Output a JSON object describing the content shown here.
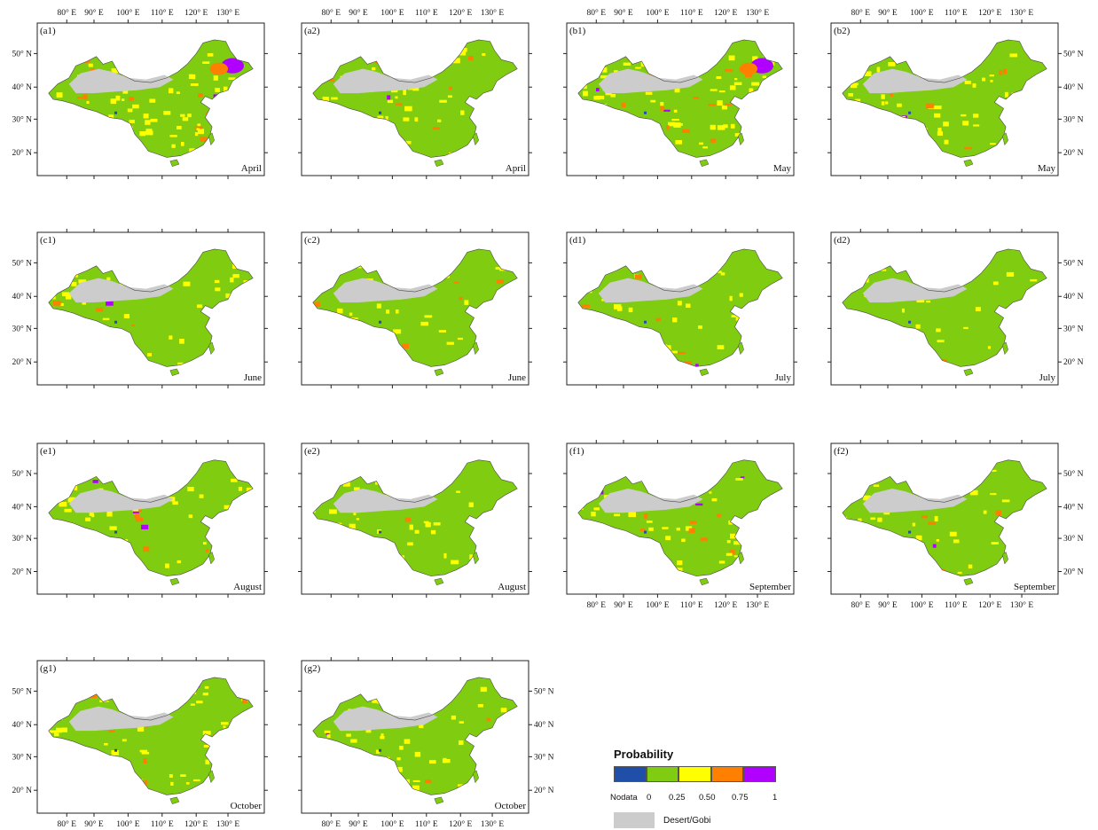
{
  "panels": [
    {
      "id": "(a1)",
      "month": "April"
    },
    {
      "id": "(a2)",
      "month": "April"
    },
    {
      "id": "(b1)",
      "month": "May"
    },
    {
      "id": "(b2)",
      "month": "May"
    },
    {
      "id": "(c1)",
      "month": "June"
    },
    {
      "id": "(c2)",
      "month": "June"
    },
    {
      "id": "(d1)",
      "month": "July"
    },
    {
      "id": "(d2)",
      "month": "July"
    },
    {
      "id": "(e1)",
      "month": "August"
    },
    {
      "id": "(e2)",
      "month": "August"
    },
    {
      "id": "(f1)",
      "month": "September"
    },
    {
      "id": "(f2)",
      "month": "September"
    },
    {
      "id": "(g1)",
      "month": "October"
    },
    {
      "id": "(g2)",
      "month": "October"
    }
  ],
  "longitude_labels": [
    "80° E",
    "90° E",
    "100° E",
    "110° E",
    "120° E",
    "130° E"
  ],
  "latitude_labels": [
    "50° N",
    "40° N",
    "30° N",
    "20° N"
  ],
  "legend": {
    "title": "Probability",
    "nodata_label": "Nodata",
    "tick_labels": [
      "0",
      "0.25",
      "0.50",
      "0.75",
      "1"
    ],
    "desert_label": "Desert/Gobi",
    "colors": {
      "nodata": "#1f4fa8",
      "bin_0_025": "#7fcc10",
      "bin_025_050": "#ffff00",
      "bin_050_075": "#ff8000",
      "bin_075_1": "#b000ff",
      "desert": "#cccccc"
    }
  }
}
